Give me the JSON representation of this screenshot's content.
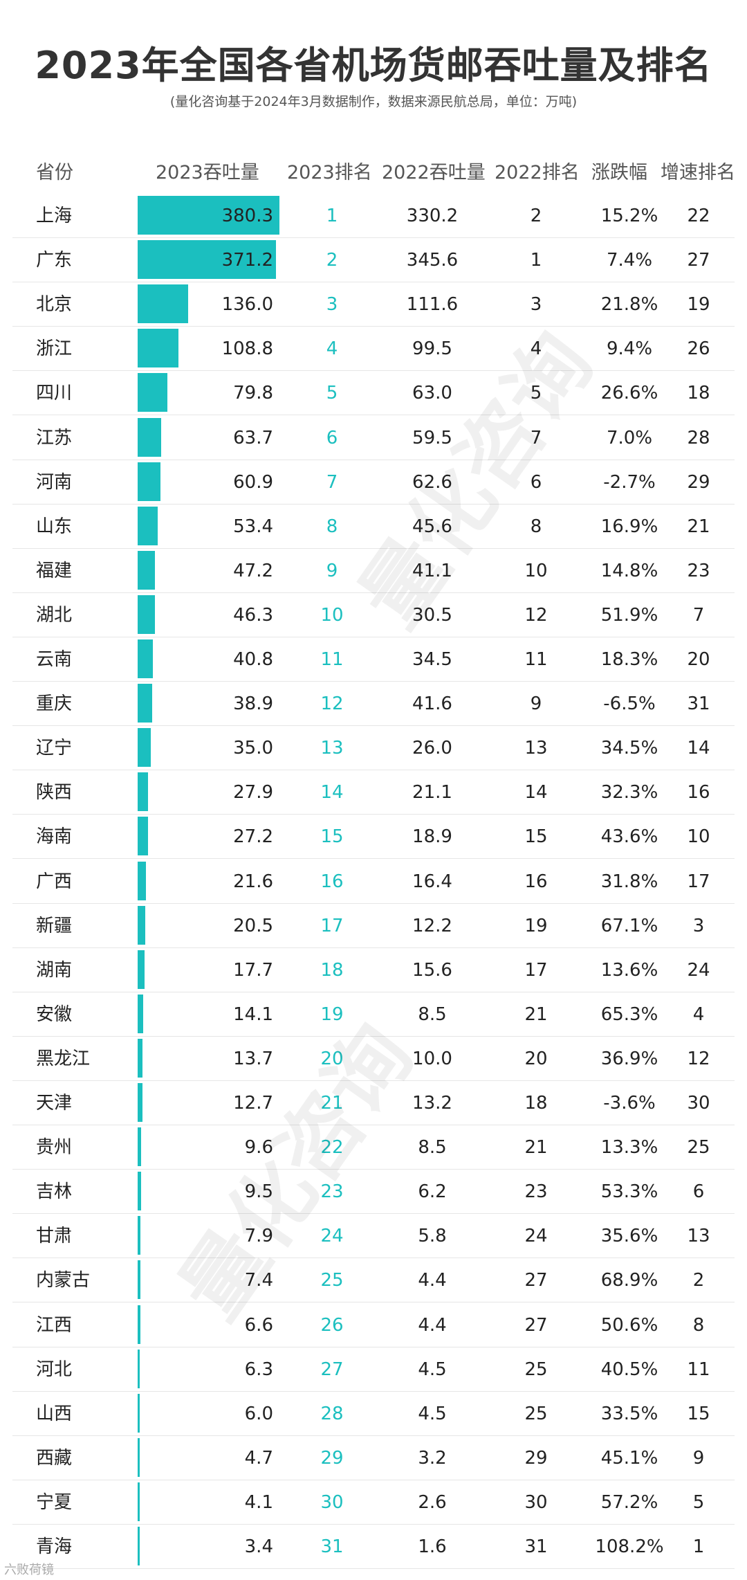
{
  "header": {
    "title": "2023年全国各省机场货邮吞吐量及排名",
    "subtitle": "(量化咨询基于2024年3月数据制作，数据来源民航总局，单位：万吨)"
  },
  "columns": [
    "省份",
    "2023吞吐量",
    "2023排名",
    "2022吞吐量",
    "2022排名",
    "涨跌幅",
    "增速排名"
  ],
  "watermark": "量化咨询",
  "footer_logo": "六败荷镜",
  "colors": {
    "bar": "#1bbfbf",
    "rank": "#1bbfbf"
  },
  "chart_data": {
    "type": "bar",
    "orientation": "horizontal",
    "title": "2023年全国各省机场货邮吞吐量及排名",
    "xlim": [
      0,
      380.3
    ],
    "categories": [
      "上海",
      "广东",
      "北京",
      "浙江",
      "四川",
      "江苏",
      "河南",
      "山东",
      "福建",
      "湖北",
      "云南",
      "重庆",
      "辽宁",
      "陕西",
      "海南",
      "广西",
      "新疆",
      "湖南",
      "安徽",
      "黑龙江",
      "天津",
      "贵州",
      "吉林",
      "甘肃",
      "内蒙古",
      "江西",
      "河北",
      "山西",
      "西藏",
      "宁夏",
      "青海"
    ],
    "series": [
      {
        "name": "2023吞吐量",
        "values": [
          380.3,
          371.2,
          136.0,
          108.8,
          79.8,
          63.7,
          60.9,
          53.4,
          47.2,
          46.3,
          40.8,
          38.9,
          35.0,
          27.9,
          27.2,
          21.6,
          20.5,
          17.7,
          14.1,
          13.7,
          12.7,
          9.6,
          9.5,
          7.9,
          7.4,
          6.6,
          6.3,
          6.0,
          4.7,
          4.1,
          3.4
        ]
      }
    ],
    "rows": [
      {
        "p": "上海",
        "v23": "380.3",
        "r23": "1",
        "v22": "330.2",
        "r22": "2",
        "chg": "15.2%",
        "sr": "22"
      },
      {
        "p": "广东",
        "v23": "371.2",
        "r23": "2",
        "v22": "345.6",
        "r22": "1",
        "chg": "7.4%",
        "sr": "27"
      },
      {
        "p": "北京",
        "v23": "136.0",
        "r23": "3",
        "v22": "111.6",
        "r22": "3",
        "chg": "21.8%",
        "sr": "19"
      },
      {
        "p": "浙江",
        "v23": "108.8",
        "r23": "4",
        "v22": "99.5",
        "r22": "4",
        "chg": "9.4%",
        "sr": "26"
      },
      {
        "p": "四川",
        "v23": "79.8",
        "r23": "5",
        "v22": "63.0",
        "r22": "5",
        "chg": "26.6%",
        "sr": "18"
      },
      {
        "p": "江苏",
        "v23": "63.7",
        "r23": "6",
        "v22": "59.5",
        "r22": "7",
        "chg": "7.0%",
        "sr": "28"
      },
      {
        "p": "河南",
        "v23": "60.9",
        "r23": "7",
        "v22": "62.6",
        "r22": "6",
        "chg": "-2.7%",
        "sr": "29"
      },
      {
        "p": "山东",
        "v23": "53.4",
        "r23": "8",
        "v22": "45.6",
        "r22": "8",
        "chg": "16.9%",
        "sr": "21"
      },
      {
        "p": "福建",
        "v23": "47.2",
        "r23": "9",
        "v22": "41.1",
        "r22": "10",
        "chg": "14.8%",
        "sr": "23"
      },
      {
        "p": "湖北",
        "v23": "46.3",
        "r23": "10",
        "v22": "30.5",
        "r22": "12",
        "chg": "51.9%",
        "sr": "7"
      },
      {
        "p": "云南",
        "v23": "40.8",
        "r23": "11",
        "v22": "34.5",
        "r22": "11",
        "chg": "18.3%",
        "sr": "20"
      },
      {
        "p": "重庆",
        "v23": "38.9",
        "r23": "12",
        "v22": "41.6",
        "r22": "9",
        "chg": "-6.5%",
        "sr": "31"
      },
      {
        "p": "辽宁",
        "v23": "35.0",
        "r23": "13",
        "v22": "26.0",
        "r22": "13",
        "chg": "34.5%",
        "sr": "14"
      },
      {
        "p": "陕西",
        "v23": "27.9",
        "r23": "14",
        "v22": "21.1",
        "r22": "14",
        "chg": "32.3%",
        "sr": "16"
      },
      {
        "p": "海南",
        "v23": "27.2",
        "r23": "15",
        "v22": "18.9",
        "r22": "15",
        "chg": "43.6%",
        "sr": "10"
      },
      {
        "p": "广西",
        "v23": "21.6",
        "r23": "16",
        "v22": "16.4",
        "r22": "16",
        "chg": "31.8%",
        "sr": "17"
      },
      {
        "p": "新疆",
        "v23": "20.5",
        "r23": "17",
        "v22": "12.2",
        "r22": "19",
        "chg": "67.1%",
        "sr": "3"
      },
      {
        "p": "湖南",
        "v23": "17.7",
        "r23": "18",
        "v22": "15.6",
        "r22": "17",
        "chg": "13.6%",
        "sr": "24"
      },
      {
        "p": "安徽",
        "v23": "14.1",
        "r23": "19",
        "v22": "8.5",
        "r22": "21",
        "chg": "65.3%",
        "sr": "4"
      },
      {
        "p": "黑龙江",
        "v23": "13.7",
        "r23": "20",
        "v22": "10.0",
        "r22": "20",
        "chg": "36.9%",
        "sr": "12"
      },
      {
        "p": "天津",
        "v23": "12.7",
        "r23": "21",
        "v22": "13.2",
        "r22": "18",
        "chg": "-3.6%",
        "sr": "30"
      },
      {
        "p": "贵州",
        "v23": "9.6",
        "r23": "22",
        "v22": "8.5",
        "r22": "21",
        "chg": "13.3%",
        "sr": "25"
      },
      {
        "p": "吉林",
        "v23": "9.5",
        "r23": "23",
        "v22": "6.2",
        "r22": "23",
        "chg": "53.3%",
        "sr": "6"
      },
      {
        "p": "甘肃",
        "v23": "7.9",
        "r23": "24",
        "v22": "5.8",
        "r22": "24",
        "chg": "35.6%",
        "sr": "13"
      },
      {
        "p": "内蒙古",
        "v23": "7.4",
        "r23": "25",
        "v22": "4.4",
        "r22": "27",
        "chg": "68.9%",
        "sr": "2"
      },
      {
        "p": "江西",
        "v23": "6.6",
        "r23": "26",
        "v22": "4.4",
        "r22": "27",
        "chg": "50.6%",
        "sr": "8"
      },
      {
        "p": "河北",
        "v23": "6.3",
        "r23": "27",
        "v22": "4.5",
        "r22": "25",
        "chg": "40.5%",
        "sr": "11"
      },
      {
        "p": "山西",
        "v23": "6.0",
        "r23": "28",
        "v22": "4.5",
        "r22": "25",
        "chg": "33.5%",
        "sr": "15"
      },
      {
        "p": "西藏",
        "v23": "4.7",
        "r23": "29",
        "v22": "3.2",
        "r22": "29",
        "chg": "45.1%",
        "sr": "9"
      },
      {
        "p": "宁夏",
        "v23": "4.1",
        "r23": "30",
        "v22": "2.6",
        "r22": "30",
        "chg": "57.2%",
        "sr": "5"
      },
      {
        "p": "青海",
        "v23": "3.4",
        "r23": "31",
        "v22": "1.6",
        "r22": "31",
        "chg": "108.2%",
        "sr": "1"
      }
    ]
  }
}
